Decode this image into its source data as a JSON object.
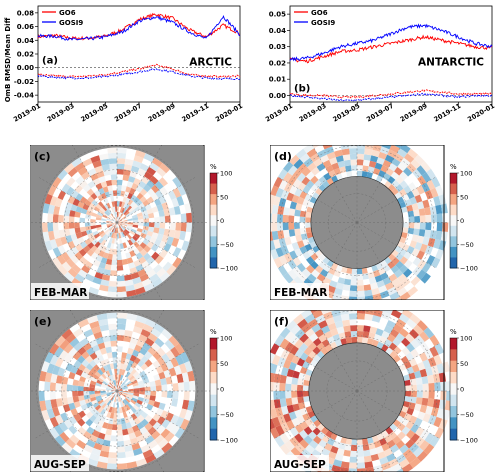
{
  "chart_data": [
    {
      "type": "line",
      "panel": "(a)",
      "region": "ARCTIC",
      "ylabel": "OmB RMSD/Mean Diff",
      "x_ticks": [
        "2019-01",
        "2019-03",
        "2019-05",
        "2019-07",
        "2019-09",
        "2019-11",
        "2020-01"
      ],
      "y_ticks": [
        "-0.04",
        "-0.02",
        "0.00",
        "0.02",
        "0.04",
        "0.06",
        "0.08"
      ],
      "ylim": [
        -0.05,
        0.09
      ],
      "legend": [
        "GO6",
        "GOSI9"
      ],
      "series": [
        {
          "name": "GO6",
          "metric": "RMSD",
          "color": "#ff0000",
          "x": [
            0,
            1,
            2,
            3,
            4,
            5,
            6,
            7,
            8,
            9,
            10,
            11,
            12
          ],
          "values": [
            0.045,
            0.047,
            0.043,
            0.043,
            0.046,
            0.055,
            0.07,
            0.078,
            0.072,
            0.055,
            0.045,
            0.062,
            0.05
          ]
        },
        {
          "name": "GOSI9",
          "metric": "RMSD",
          "color": "#0000ff",
          "x": [
            0,
            1,
            2,
            3,
            4,
            5,
            6,
            7,
            8,
            9,
            10,
            11,
            12
          ],
          "values": [
            0.046,
            0.046,
            0.041,
            0.042,
            0.045,
            0.052,
            0.068,
            0.074,
            0.066,
            0.052,
            0.042,
            0.075,
            0.048
          ]
        },
        {
          "name": "GO6",
          "metric": "Mean Diff",
          "color": "#ff0000",
          "x": [
            0,
            1,
            2,
            3,
            4,
            5,
            6,
            7,
            8,
            9,
            10,
            11,
            12
          ],
          "values": [
            -0.01,
            -0.012,
            -0.013,
            -0.012,
            -0.01,
            -0.006,
            -0.002,
            0.004,
            -0.002,
            -0.01,
            -0.012,
            -0.013,
            -0.012
          ]
        },
        {
          "name": "GOSI9",
          "metric": "Mean Diff",
          "color": "#0000ff",
          "x": [
            0,
            1,
            2,
            3,
            4,
            5,
            6,
            7,
            8,
            9,
            10,
            11,
            12
          ],
          "values": [
            -0.012,
            -0.014,
            -0.015,
            -0.015,
            -0.013,
            -0.01,
            -0.006,
            -0.002,
            -0.006,
            -0.012,
            -0.015,
            -0.016,
            -0.016
          ]
        }
      ]
    },
    {
      "type": "line",
      "panel": "(b)",
      "region": "ANTARCTIC",
      "ylabel": "OmB RMSD/Mean Diff",
      "x_ticks": [
        "2019-01",
        "2019-03",
        "2019-05",
        "2019-07",
        "2019-09",
        "2019-11",
        "2020-01"
      ],
      "y_ticks": [
        "0.00",
        "0.01",
        "0.02",
        "0.03",
        "0.04",
        "0.05"
      ],
      "ylim": [
        -0.004,
        0.055
      ],
      "legend": [
        "GO6",
        "GOSI9"
      ],
      "series": [
        {
          "name": "GO6",
          "metric": "RMSD",
          "color": "#ff0000",
          "x": [
            0,
            1,
            2,
            3,
            4,
            5,
            6,
            7,
            8,
            9,
            10,
            11,
            12
          ],
          "values": [
            0.022,
            0.021,
            0.024,
            0.027,
            0.028,
            0.03,
            0.032,
            0.034,
            0.036,
            0.034,
            0.032,
            0.03,
            0.029
          ]
        },
        {
          "name": "GOSI9",
          "metric": "RMSD",
          "color": "#0000ff",
          "x": [
            0,
            1,
            2,
            3,
            4,
            5,
            6,
            7,
            8,
            9,
            10,
            11,
            12
          ],
          "values": [
            0.022,
            0.023,
            0.026,
            0.03,
            0.032,
            0.034,
            0.038,
            0.042,
            0.043,
            0.04,
            0.036,
            0.032,
            0.03
          ]
        },
        {
          "name": "GO6",
          "metric": "Mean Diff",
          "color": "#ff0000",
          "x": [
            0,
            1,
            2,
            3,
            4,
            5,
            6,
            7,
            8,
            9,
            10,
            11,
            12
          ],
          "values": [
            0.001,
            0.0,
            0.0,
            -0.001,
            -0.001,
            0.0,
            0.001,
            0.002,
            0.003,
            0.002,
            0.001,
            0.001,
            0.001
          ]
        },
        {
          "name": "GOSI9",
          "metric": "Mean Diff",
          "color": "#0000ff",
          "x": [
            0,
            1,
            2,
            3,
            4,
            5,
            6,
            7,
            8,
            9,
            10,
            11,
            12
          ],
          "values": [
            0.0,
            -0.001,
            -0.002,
            -0.003,
            -0.003,
            -0.002,
            -0.001,
            0.0,
            0.001,
            0.0,
            -0.001,
            0.0,
            0.0
          ]
        }
      ]
    },
    {
      "type": "heatmap",
      "panel": "(c)",
      "region": "ARCTIC",
      "period": "FEB-MAR",
      "colorbar": {
        "unit": "%",
        "ticks": [
          "100",
          "50",
          "0",
          "−50",
          "−100"
        ],
        "range": [
          -100,
          100
        ]
      }
    },
    {
      "type": "heatmap",
      "panel": "(d)",
      "region": "ANTARCTIC",
      "period": "FEB-MAR",
      "colorbar": {
        "unit": "%",
        "ticks": [
          "100",
          "50",
          "0",
          "−50",
          "−100"
        ],
        "range": [
          -100,
          100
        ]
      }
    },
    {
      "type": "heatmap",
      "panel": "(e)",
      "region": "ARCTIC",
      "period": "AUG-SEP",
      "colorbar": {
        "unit": "%",
        "ticks": [
          "100",
          "50",
          "0",
          "−50",
          "−100"
        ],
        "range": [
          -100,
          100
        ]
      }
    },
    {
      "type": "heatmap",
      "panel": "(f)",
      "region": "ANTARCTIC",
      "period": "AUG-SEP",
      "colorbar": {
        "unit": "%",
        "ticks": [
          "100",
          "50",
          "0",
          "−50",
          "−100"
        ],
        "range": [
          -100,
          100
        ]
      }
    }
  ],
  "colors": {
    "go6": "#ff0000",
    "gosi9": "#0000ff",
    "land": "#808080",
    "positive": "#b2182b",
    "negative": "#2166ac"
  }
}
